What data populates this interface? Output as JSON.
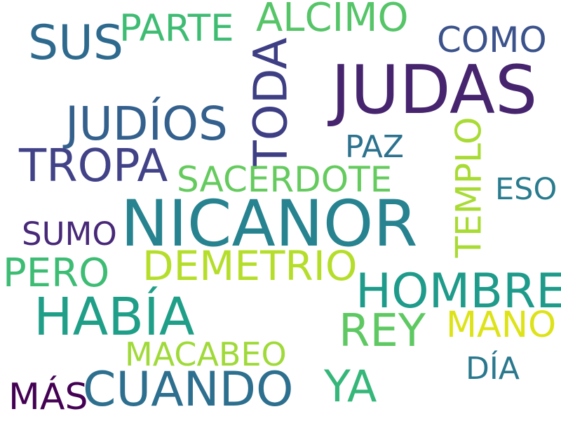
{
  "wordcloud": {
    "words": [
      {
        "text": "JUDAS",
        "color": "#46246e"
      },
      {
        "text": "NICANOR",
        "color": "#26838f"
      },
      {
        "text": "JUDÍOS",
        "color": "#34608d"
      },
      {
        "text": "TODA",
        "color": "#3e3e84"
      },
      {
        "text": "SUS",
        "color": "#2e6a8e"
      },
      {
        "text": "HABÍA",
        "color": "#1f9f88"
      },
      {
        "text": "CUANDO",
        "color": "#2d6f8e"
      },
      {
        "text": "HOMBRE",
        "color": "#1e9b8a"
      },
      {
        "text": "TROPA",
        "color": "#414287"
      },
      {
        "text": "REY",
        "color": "#5ec962"
      },
      {
        "text": "ALCIMO",
        "color": "#55c568"
      },
      {
        "text": "DEMETRIO",
        "color": "#b5de2b"
      },
      {
        "text": "SACERDOTE",
        "color": "#65cb5e"
      },
      {
        "text": "PARTE",
        "color": "#3fbc73"
      },
      {
        "text": "PERO",
        "color": "#3dbc74"
      },
      {
        "text": "YA",
        "color": "#35b779"
      },
      {
        "text": "TEMPLO",
        "color": "#a8db34"
      },
      {
        "text": "COMO",
        "color": "#3b528b"
      },
      {
        "text": "MANO",
        "color": "#dde318"
      },
      {
        "text": "MACABEO",
        "color": "#a0da39"
      },
      {
        "text": "SUMO",
        "color": "#482878"
      },
      {
        "text": "MÁS",
        "color": "#440154"
      },
      {
        "text": "DÍA",
        "color": "#2a788e"
      },
      {
        "text": "PAZ",
        "color": "#2c728e"
      },
      {
        "text": "ESO",
        "color": "#287c8e"
      }
    ]
  }
}
